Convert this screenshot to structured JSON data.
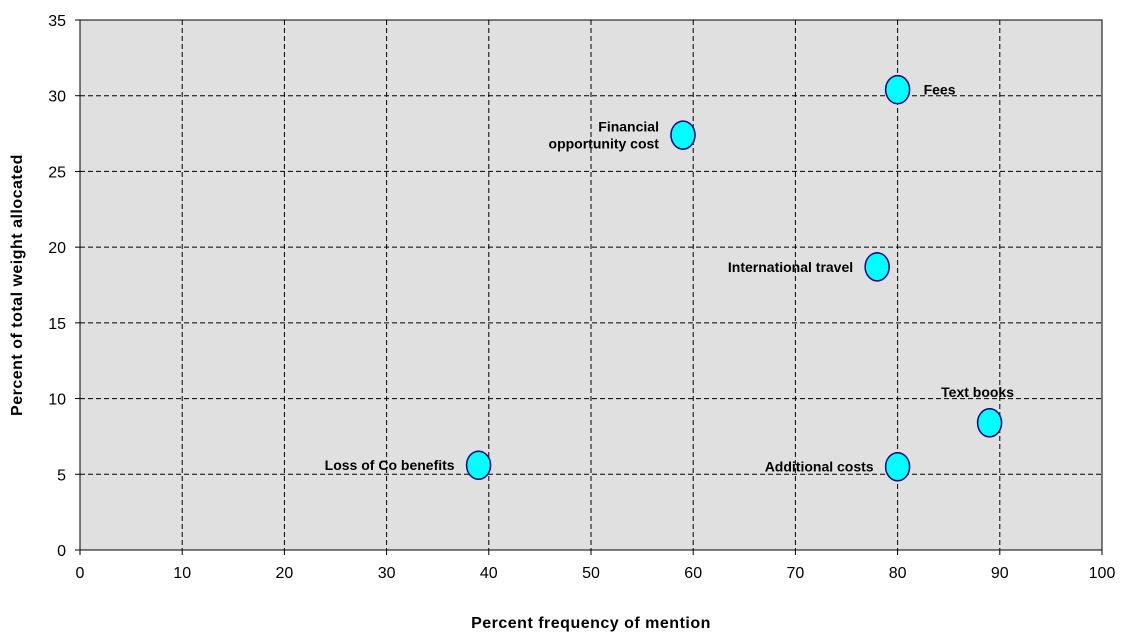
{
  "chart_data": {
    "type": "scatter",
    "title": "",
    "xlabel": "Percent frequency of mention",
    "ylabel": "Percent of total weight allocated",
    "xlim": [
      0,
      100
    ],
    "ylim": [
      0,
      35
    ],
    "x_ticks": [
      0,
      10,
      20,
      30,
      40,
      50,
      60,
      70,
      80,
      90,
      100
    ],
    "y_ticks": [
      0,
      5,
      10,
      15,
      20,
      25,
      30,
      35
    ],
    "grid": true,
    "legend": "none",
    "colors": {
      "plot_background": "#e0e0e0",
      "marker_fill": "#00ffff",
      "marker_edge": "#000080",
      "grid": "#000000"
    },
    "points": [
      {
        "label": [
          "Fees"
        ],
        "x": 80,
        "y": 30.4,
        "label_position": "right"
      },
      {
        "label": [
          "Financial",
          "opportunity cost"
        ],
        "x": 59,
        "y": 27.4,
        "label_position": "left"
      },
      {
        "label": [
          "International travel"
        ],
        "x": 78,
        "y": 18.7,
        "label_position": "left"
      },
      {
        "label": [
          "Text books"
        ],
        "x": 89,
        "y": 8.4,
        "label_position": "above"
      },
      {
        "label": [
          "Loss of Co benefits"
        ],
        "x": 39,
        "y": 5.6,
        "label_position": "left"
      },
      {
        "label": [
          "Additional costs"
        ],
        "x": 80,
        "y": 5.5,
        "label_position": "left"
      }
    ]
  }
}
